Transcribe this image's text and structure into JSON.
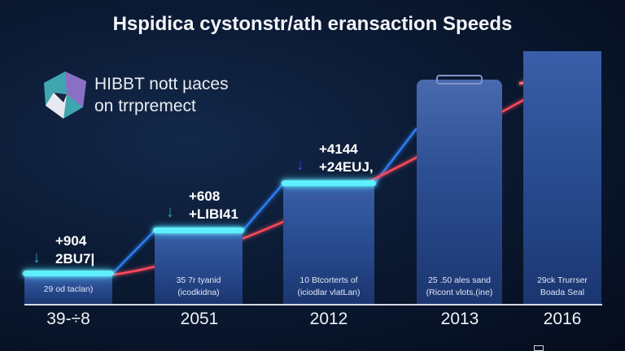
{
  "title": "Hspidica cystonstr/ath eransaction Speeds",
  "logo_text": [
    "HIBBT nott µaces",
    "on trrpremect"
  ],
  "colors": {
    "accent_cyan": "#5ff0ff",
    "trend_red": "#ff3a4a",
    "bar_blue": "#2f549c",
    "background": "#0b1a33"
  },
  "chart_data": {
    "type": "bar",
    "title": "Hspidica cystonstr/ath eransaction Speeds",
    "categories": [
      "39-÷8",
      "2051",
      "2012",
      "2013",
      "2016"
    ],
    "bar_labels": [
      [
        "29 od taclan)"
      ],
      [
        "35 7r tyanid",
        "(icodkidna)"
      ],
      [
        "10 Btcorterts of",
        "(iciodlar vlatLan)"
      ],
      [
        "25 .50 ales sand",
        "(Ricont vlots,(ine)"
      ],
      [
        "29ck Trurrser",
        "Boada Seal"
      ]
    ],
    "deltas": [
      [
        "+904",
        "2BU7|"
      ],
      [
        "+608",
        "+LIBI41"
      ],
      [
        "+4144",
        "+24EUJ,"
      ]
    ],
    "trend": "rising arrow",
    "grid": false,
    "legend": "none"
  }
}
